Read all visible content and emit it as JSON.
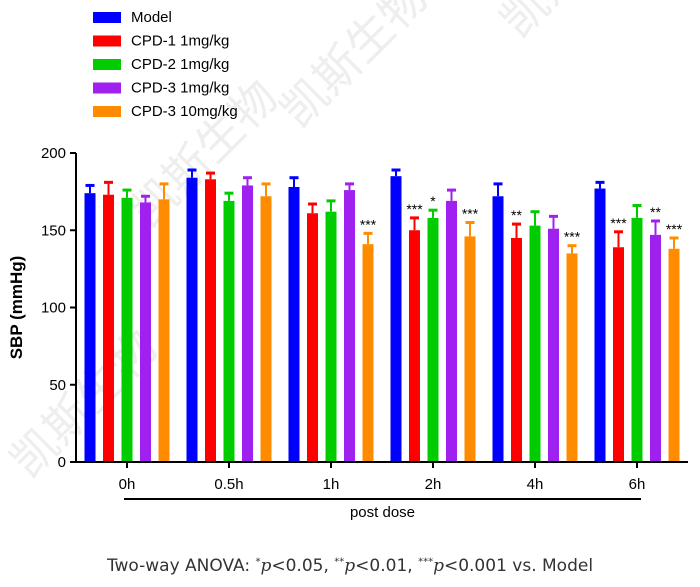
{
  "chart_data": {
    "type": "bar",
    "title": "",
    "ylabel": "SBP (mmHg)",
    "xlabel": "post dose",
    "ylim": [
      0,
      200
    ],
    "yticks": [
      0,
      50,
      100,
      150,
      200
    ],
    "categories": [
      "0h",
      "0.5h",
      "1h",
      "2h",
      "4h",
      "6h"
    ],
    "legend_position": "top-left",
    "series": [
      {
        "name": "Model",
        "color": "#0000ff",
        "values": [
          174,
          184,
          178,
          185,
          172,
          177
        ],
        "errors": [
          5,
          5,
          6,
          4,
          8,
          4
        ],
        "stars": [
          "",
          "",
          "",
          "",
          "",
          ""
        ]
      },
      {
        "name": "CPD-1 1mg/kg",
        "color": "#ff0000",
        "values": [
          173,
          183,
          161,
          150,
          145,
          139
        ],
        "errors": [
          8,
          4,
          6,
          8,
          9,
          10
        ],
        "stars": [
          "",
          "",
          "",
          "***",
          "**",
          "***"
        ]
      },
      {
        "name": "CPD-2 1mg/kg",
        "color": "#00cc00",
        "values": [
          171,
          169,
          162,
          158,
          153,
          158
        ],
        "errors": [
          5,
          5,
          7,
          5,
          9,
          8
        ],
        "stars": [
          "",
          "",
          "",
          "*",
          "",
          ""
        ]
      },
      {
        "name": "CPD-3 1mg/kg",
        "color": "#a020f0",
        "values": [
          168,
          179,
          176,
          169,
          151,
          147
        ],
        "errors": [
          4,
          5,
          4,
          7,
          8,
          9
        ],
        "stars": [
          "",
          "",
          "",
          "",
          "",
          "**"
        ]
      },
      {
        "name": "CPD-3 10mg/kg",
        "color": "#ff8c00",
        "values": [
          170,
          172,
          141,
          146,
          135,
          138
        ],
        "errors": [
          10,
          8,
          7,
          9,
          5,
          7
        ],
        "stars": [
          "",
          "",
          "***",
          "***",
          "***",
          "***"
        ]
      }
    ]
  },
  "watermark": "凯斯生物",
  "footnote": {
    "prefix": "Two-way ANOVA: ",
    "s1": "*",
    "p1": "p",
    "t1": "<0.05, ",
    "s2": "**",
    "p2": "p",
    "t2": "<0.01, ",
    "s3": "***",
    "p3": "p",
    "t3": "<0.001 vs. Model"
  }
}
